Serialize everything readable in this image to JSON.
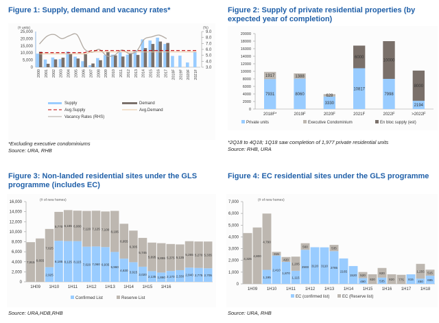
{
  "figures": {
    "fig1": {
      "title": "Figure 1: Supply, demand and vacancy rates*",
      "note": "*Excluding executive condominiums",
      "source": "Source: URA, RHB"
    },
    "fig2": {
      "title_line1": "Figure 2: Supply of private residential properties (by",
      "title_line2": "expected year of completion)",
      "note": "*2Q18 to 4Q18; 1Q18 saw completion of 1,977 private residential units",
      "source": "Source: RHB, URA"
    },
    "fig3": {
      "title_line1": "Figure 3: Non-landed residential sites under the GLS",
      "title_line2": "programme (includes EC)",
      "source": "Source: URA,HDB,RHB"
    },
    "fig4": {
      "title": "Figure 4:  EC residential sites under the GLS programme",
      "source": "Source: URA, RHB"
    }
  },
  "colors": {
    "title_blue": "#1f5fa8",
    "light_blue": "#99ccff",
    "dark_gray": "#7a706a",
    "light_gray": "#bdb7b0",
    "avg_supply_red": "#c00000",
    "avg_demand_tan": "#e8c49a",
    "vacancy_gray": "#b0a8a0"
  },
  "chart_data": [
    {
      "id": "fig1",
      "type": "bar",
      "title": "Figure 1: Supply, demand and vacancy rates*",
      "categories": [
        "2000",
        "2001",
        "2002",
        "2003",
        "2004",
        "2005",
        "2006",
        "2007",
        "2008",
        "2009",
        "2010",
        "2011",
        "2012",
        "2013",
        "2014",
        "2015",
        "2016",
        "2017",
        "2018F",
        "2019F",
        "2020F",
        "2021F"
      ],
      "series": [
        {
          "name": "Supply",
          "kind": "bar",
          "values": [
            9500,
            5400,
            6800,
            5700,
            11000,
            7400,
            4200,
            1400,
            6400,
            8500,
            8800,
            10500,
            8800,
            11800,
            19500,
            18700,
            20700,
            16300,
            7900,
            8100,
            3300,
            10800
          ]
        },
        {
          "name": "Demand",
          "kind": "bar",
          "values": [
            10800,
            2400,
            5500,
            6700,
            9400,
            6100,
            9100,
            2600,
            4900,
            10600,
            8300,
            7500,
            9900,
            8600,
            13400,
            16300,
            18000,
            17000,
            null,
            null,
            null,
            null
          ]
        },
        {
          "name": "Avg.Supply",
          "kind": "line",
          "values": [
            10200,
            10200,
            10200,
            10200,
            10200,
            10200,
            10200,
            11700,
            11700,
            11700,
            11700,
            11700,
            11700,
            11700,
            11700,
            11700,
            11700,
            11700,
            11700,
            11700,
            11700,
            11700
          ]
        },
        {
          "name": "Avg.Demand",
          "kind": "line",
          "values": [
            9300,
            9300,
            9300,
            9300,
            9300,
            9300,
            9300,
            10700,
            10700,
            10700,
            10700,
            10700,
            10700,
            10700,
            10700,
            10700,
            10700,
            10700,
            10700,
            10700,
            10700,
            10700
          ]
        },
        {
          "name": "Vacancy Rates (RHS)",
          "kind": "line",
          "axis": "right",
          "values": [
            6.9,
            8.2,
            8.5,
            7.8,
            8.3,
            8.5,
            6.1,
            5.5,
            6.0,
            4.9,
            5.0,
            5.9,
            5.3,
            5.7,
            7.7,
            8.1,
            8.4,
            7.8,
            null,
            null,
            null,
            null
          ]
        }
      ],
      "ylabel_left": "(# units)",
      "ylabel_right": "(%)",
      "ylim_left": [
        0,
        25000
      ],
      "yticks_left": [
        "0",
        "5,000",
        "10,000",
        "15,000",
        "20,000",
        "25,000"
      ],
      "ylim_right": [
        3.0,
        9.0
      ],
      "yticks_right": [
        "3.0",
        "4.0",
        "5.0",
        "6.0",
        "7.0",
        "8.0",
        "9.0"
      ],
      "legend": [
        "Supply",
        "Demand",
        "Avg.Supply",
        "Avg.Demand",
        "Vacancy Rates (RHS)"
      ],
      "legend_position": "bottom"
    },
    {
      "id": "fig2",
      "type": "bar",
      "stacked": true,
      "title": "Figure 2: Supply of private residential properties (by expected year of completion)",
      "categories": [
        "2018F*",
        "2019F",
        "2020F",
        "2021F",
        "2022F",
        ">2022F"
      ],
      "series": [
        {
          "name": "Private units",
          "values": [
            7931,
            8060,
            3330,
            10817,
            7998,
            2194
          ],
          "labels": [
            "7931",
            "8060",
            "3330",
            "10817",
            "7998",
            "2194"
          ]
        },
        {
          "name": "Executive Condominium",
          "values": [
            1917,
            1388,
            628,
            0,
            0,
            0
          ],
          "labels": [
            "1917",
            "1388",
            "628",
            "",
            "",
            ""
          ]
        },
        {
          "name": "En bloc supply (est)",
          "values": [
            0,
            0,
            0,
            6000,
            10000,
            8000
          ],
          "labels": [
            "",
            "",
            "",
            "6000",
            "10000",
            "8000"
          ]
        }
      ],
      "ylim": [
        0,
        20000
      ],
      "yticks": [
        "0",
        "2000",
        "4000",
        "6000",
        "8000",
        "10000",
        "12000",
        "14000",
        "16000",
        "18000",
        "20000"
      ],
      "legend": [
        "Private units",
        "Executive Condominium",
        "En bloc supply (est)"
      ],
      "legend_position": "bottom"
    },
    {
      "id": "fig3",
      "type": "bar",
      "stacked": true,
      "title": "Figure 3: Non-landed residential sites under the GLS programme (includes EC)",
      "categories": [
        "1H09",
        "2H09",
        "1H10",
        "2H10",
        "1H11",
        "2H11",
        "1H12",
        "2H12",
        "1H13",
        "2H13",
        "1H14",
        "2H14",
        "1H15",
        "2H15",
        "1H16",
        "2H16",
        "1H17",
        "2H17",
        "1H18",
        "2H18"
      ],
      "x_tick_labels": [
        "1H09",
        "1H10",
        "1H11",
        "1H12",
        "1H13",
        "1H14",
        "1H15",
        "1H16"
      ],
      "series": [
        {
          "name": "Confirmed List",
          "values": [
            0,
            0,
            2925,
            8185,
            8125,
            8115,
            7020,
            7060,
            6935,
            5960,
            4630,
            3915,
            3020,
            2135,
            1860,
            2170,
            2330,
            2840,
            2775,
            2705
          ],
          "labels": [
            "",
            "",
            "2,925",
            "8,185",
            "8,125",
            "8,115",
            "7,020",
            "7,060",
            "6,935",
            "5,960",
            "4,630",
            "3,915",
            "3,020",
            "2,135",
            "1,860",
            "2,170",
            "2,330",
            "2,840",
            "2,775",
            "2,705"
          ]
        },
        {
          "name": "Reserve List",
          "values": [
            7915,
            8655,
            7625,
            5770,
            6185,
            6080,
            7120,
            7125,
            7100,
            8195,
            6955,
            6305,
            5745,
            5695,
            5855,
            5375,
            5135,
            5265,
            5270,
            5335
          ],
          "labels": [
            "7,915",
            "8,655",
            "7,625",
            "5,770",
            "6,185",
            "6,080",
            "7,120",
            "7,125",
            "7,100",
            "8,195",
            "6,955",
            "6,305",
            "5,745",
            "5,695",
            "5,855",
            "5,375",
            "5,135",
            "5,265",
            "5,270",
            "5,335"
          ]
        }
      ],
      "ylabel": "(# of new homes)",
      "ylim": [
        0,
        16000
      ],
      "yticks": [
        "0",
        "2,000",
        "4,000",
        "6,000",
        "8,000",
        "10,000",
        "12,000",
        "14,000",
        "16,000"
      ],
      "legend": [
        "Confirmed List",
        "Reserve List"
      ],
      "legend_position": "bottom"
    },
    {
      "id": "fig4",
      "type": "bar",
      "stacked": true,
      "title": "Figure 4: EC residential sites under the GLS programme",
      "categories": [
        "1H09",
        "2H09",
        "1H10",
        "2H10",
        "1H11",
        "2H11",
        "1H12",
        "2H12",
        "1H13",
        "2H13",
        "1H14",
        "2H14",
        "1H15",
        "2H15",
        "1H16",
        "2H16",
        "1H17",
        "2H17",
        "1H18",
        "2H18"
      ],
      "x_tick_labels": [
        "1H09",
        "1H10",
        "1H11",
        "1H12",
        "1H13",
        "1H14",
        "1H15",
        "1H16",
        "1H17",
        "1H18"
      ],
      "series": [
        {
          "name": "EC (confirmed list)",
          "values": [
            0,
            0,
            1195,
            2410,
            1870,
            1115,
            2900,
            3120,
            3110,
            2785,
            2165,
            1520,
            490,
            0,
            535,
            0,
            0,
            815,
            450,
            695
          ],
          "labels": [
            "",
            "",
            "1,195",
            "2,410",
            "1,870",
            "1,115",
            "2900",
            "3120",
            "3110",
            "2785",
            "2165",
            "1520",
            "490",
            "",
            "535",
            "",
            "",
            "815",
            "450",
            "695"
          ]
        },
        {
          "name": "EC (Reserve list)",
          "values": [
            4325,
            4800,
            4790,
            315,
            420,
            1205,
            560,
            0,
            0,
            535,
            0,
            0,
            520,
            820,
            820,
            820,
            775,
            0,
            1255,
            515
          ],
          "labels": [
            "4,325",
            "4,800",
            "4,790",
            "315",
            "420",
            "1,205",
            "560",
            "",
            "",
            "535",
            "",
            "",
            "520",
            "820",
            "820",
            "820",
            "775",
            "",
            "1,255",
            "515"
          ]
        }
      ],
      "ylabel": "(# of new homes)",
      "ylim": [
        0,
        7000
      ],
      "yticks": [
        "0",
        "1,000",
        "2,000",
        "3,000",
        "4,000",
        "5,000",
        "6,000",
        "7,000"
      ],
      "legend": [
        "EC (confirmed list)",
        "EC (Reserve list)"
      ],
      "legend_position": "bottom"
    }
  ]
}
